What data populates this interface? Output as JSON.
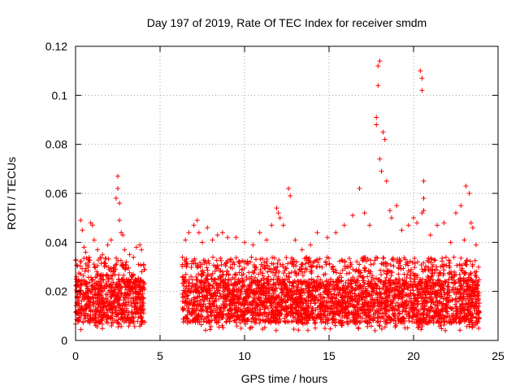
{
  "chart_data": {
    "type": "scatter",
    "title": "Day 197 of 2019, Rate Of TEC Index for receiver smdm",
    "xlabel": "GPS time / hours",
    "ylabel": "ROTI / TECUs",
    "xlim": [
      0,
      25
    ],
    "ylim": [
      0,
      0.12
    ],
    "xticks": [
      0,
      5,
      10,
      15,
      20,
      25
    ],
    "xtick_labels": [
      "0",
      "5",
      "10",
      "15",
      "20",
      "25"
    ],
    "yticks": [
      0,
      0.02,
      0.04,
      0.06,
      0.08,
      0.1,
      0.12
    ],
    "ytick_labels": [
      "0",
      "0.02",
      "0.04",
      "0.06",
      "0.08",
      "0.1",
      "0.12"
    ],
    "grid": true,
    "marker": "plus",
    "color": "#ff0000",
    "dense_band": {
      "segments": [
        {
          "x_start": 0.0,
          "x_end": 4.1
        },
        {
          "x_start": 6.3,
          "x_end": 23.9
        }
      ],
      "y_typical_low": 0.007,
      "y_typical_high": 0.025
    },
    "series": [
      {
        "x": [
          0.3,
          0.4,
          0.5,
          0.6,
          0.9,
          1.0,
          1.1,
          1.3,
          1.6,
          1.9,
          2.1,
          2.4,
          2.5,
          2.5,
          2.6,
          2.6,
          2.7,
          2.8,
          2.9,
          3.0,
          3.2,
          3.6,
          3.8,
          3.9,
          6.5,
          6.7,
          7.0,
          7.2,
          7.3,
          7.5,
          7.8,
          8.1,
          8.4,
          8.7,
          9.0,
          9.5,
          10.0,
          10.5,
          10.9,
          11.3,
          11.6,
          11.9,
          12.0,
          12.1,
          12.3,
          12.6,
          12.7,
          13.0,
          13.4,
          13.9,
          14.3,
          14.9,
          15.4,
          15.9,
          16.4,
          16.8,
          17.1,
          17.4,
          17.8,
          17.8,
          17.9,
          17.9,
          18.0,
          18.0,
          18.1,
          18.2,
          18.3,
          18.4,
          18.6,
          18.7,
          19.0,
          19.3,
          19.7,
          20.0,
          20.2,
          20.4,
          20.5,
          20.5,
          20.6,
          20.6,
          20.5,
          20.6,
          21.0,
          21.4,
          21.8,
          22.2,
          22.5,
          22.8,
          23.0,
          23.1,
          23.3,
          23.4,
          23.5,
          23.7
        ],
        "y": [
          0.049,
          0.045,
          0.038,
          0.036,
          0.048,
          0.047,
          0.041,
          0.037,
          0.035,
          0.039,
          0.041,
          0.058,
          0.062,
          0.067,
          0.056,
          0.049,
          0.044,
          0.043,
          0.037,
          0.032,
          0.035,
          0.038,
          0.039,
          0.037,
          0.041,
          0.044,
          0.047,
          0.049,
          0.044,
          0.04,
          0.046,
          0.041,
          0.043,
          0.044,
          0.042,
          0.042,
          0.04,
          0.039,
          0.044,
          0.041,
          0.047,
          0.054,
          0.052,
          0.05,
          0.047,
          0.062,
          0.059,
          0.041,
          0.037,
          0.039,
          0.044,
          0.042,
          0.044,
          0.047,
          0.051,
          0.062,
          0.052,
          0.047,
          0.091,
          0.088,
          0.104,
          0.112,
          0.114,
          0.074,
          0.069,
          0.085,
          0.082,
          0.065,
          0.053,
          0.05,
          0.055,
          0.045,
          0.047,
          0.05,
          0.048,
          0.11,
          0.107,
          0.102,
          0.065,
          0.058,
          0.052,
          0.053,
          0.043,
          0.047,
          0.048,
          0.04,
          0.052,
          0.055,
          0.041,
          0.063,
          0.06,
          0.048,
          0.046,
          0.039
        ]
      }
    ]
  }
}
